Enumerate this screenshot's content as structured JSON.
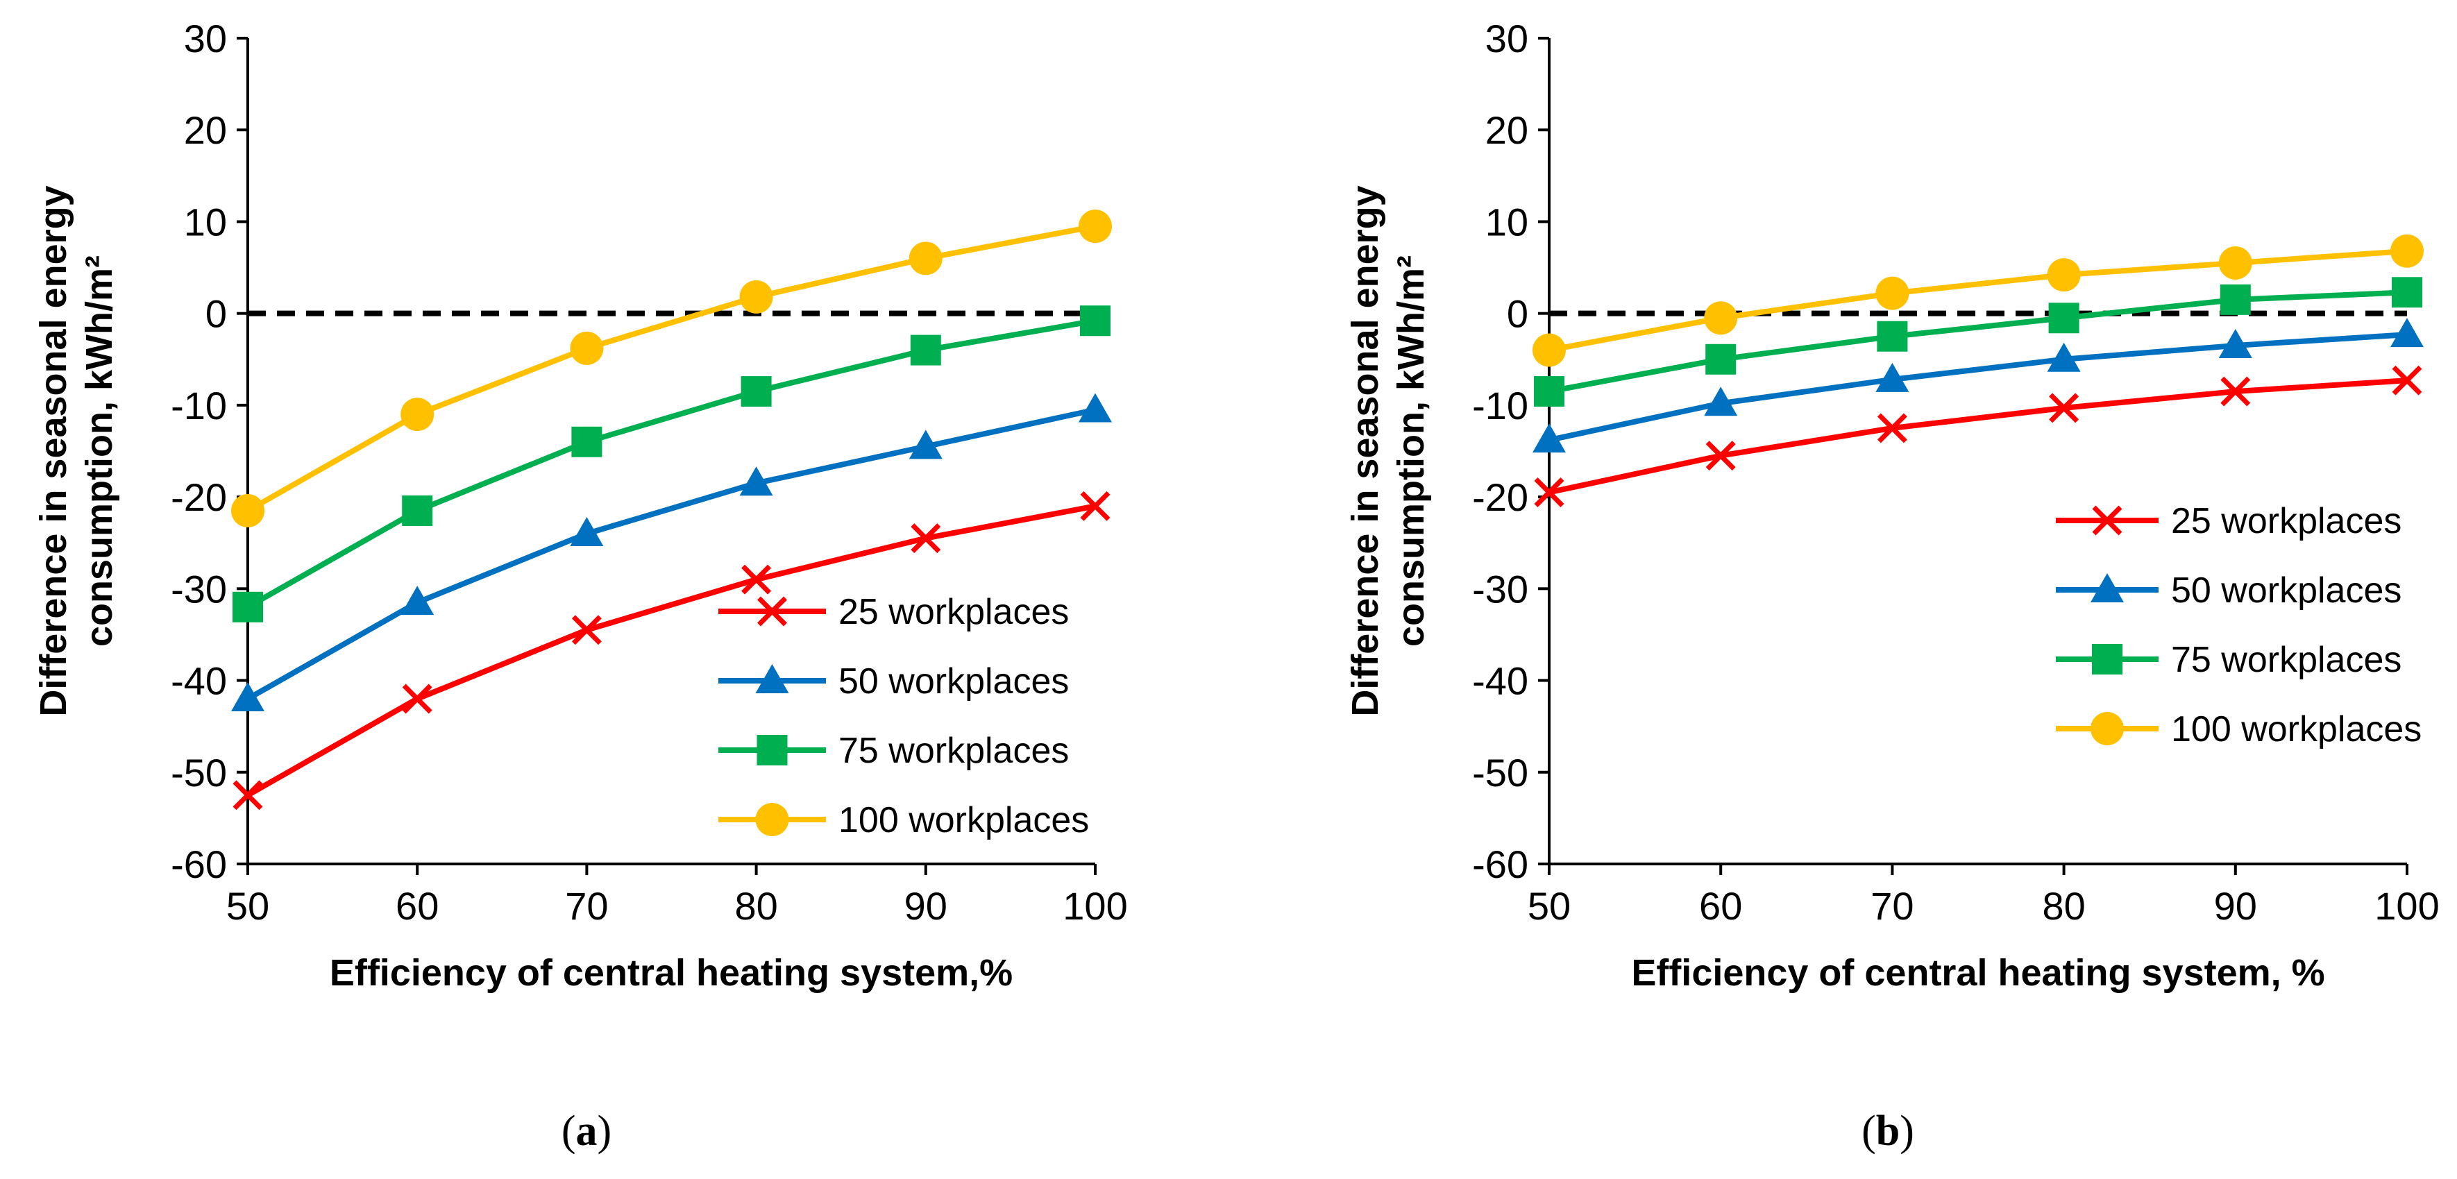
{
  "chart_data": [
    {
      "type": "line",
      "panel_label_open": "(",
      "panel_label": "a",
      "panel_label_close": ")",
      "xlabel": "Efficiency of central heating system,%",
      "ylabel_line1": "Difference in seasonal energy",
      "ylabel_line2": "consumption, kWh/m²",
      "xlim": [
        50,
        100
      ],
      "ylim": [
        -60,
        30
      ],
      "xticks": [
        50,
        60,
        70,
        80,
        90,
        100
      ],
      "yticks": [
        30,
        20,
        10,
        0,
        -10,
        -20,
        -30,
        -40,
        -50,
        -60
      ],
      "legend_position": "bottom-right",
      "x": [
        50,
        60,
        70,
        80,
        90,
        100
      ],
      "series": [
        {
          "name": "25 workplaces",
          "color": "#ff0000",
          "marker": "x",
          "values": [
            -52.5,
            -42,
            -34.5,
            -29,
            -24.5,
            -21
          ]
        },
        {
          "name": "50 workplaces",
          "color": "#0070c0",
          "marker": "triangle",
          "values": [
            -42,
            -31.5,
            -24,
            -18.5,
            -14.5,
            -10.5
          ]
        },
        {
          "name": "75 workplaces",
          "color": "#00b050",
          "marker": "square",
          "values": [
            -32,
            -21.5,
            -14,
            -8.5,
            -4,
            -0.8
          ]
        },
        {
          "name": "100 workplaces",
          "color": "#ffc000",
          "marker": "circle",
          "values": [
            -21.5,
            -11,
            -3.8,
            1.8,
            6,
            9.5
          ]
        }
      ],
      "reference_line": {
        "y": 0,
        "style": "dashed",
        "color": "#000000"
      }
    },
    {
      "type": "line",
      "panel_label_open": "(",
      "panel_label": "b",
      "panel_label_close": ")",
      "xlabel": "Efficiency of central heating system, %",
      "ylabel_line1": "Difference in seasonal energy",
      "ylabel_line2": "consumption, kWh/m²",
      "xlim": [
        50,
        100
      ],
      "ylim": [
        -60,
        30
      ],
      "xticks": [
        50,
        60,
        70,
        80,
        90,
        100
      ],
      "yticks": [
        30,
        20,
        10,
        0,
        -10,
        -20,
        -30,
        -40,
        -50,
        -60
      ],
      "legend_position": "right",
      "x": [
        50,
        60,
        70,
        80,
        90,
        100
      ],
      "series": [
        {
          "name": "25 workplaces",
          "color": "#ff0000",
          "marker": "x",
          "values": [
            -19.5,
            -15.5,
            -12.5,
            -10.3,
            -8.5,
            -7.3
          ]
        },
        {
          "name": "50 workplaces",
          "color": "#0070c0",
          "marker": "triangle",
          "values": [
            -13.8,
            -9.8,
            -7.2,
            -5,
            -3.5,
            -2.3
          ]
        },
        {
          "name": "75 workplaces",
          "color": "#00b050",
          "marker": "square",
          "values": [
            -8.5,
            -5,
            -2.5,
            -0.5,
            1.5,
            2.3
          ]
        },
        {
          "name": "100 workplaces",
          "color": "#ffc000",
          "marker": "circle",
          "values": [
            -4,
            -0.5,
            2.2,
            4.2,
            5.5,
            6.8
          ]
        }
      ],
      "reference_line": {
        "y": 0,
        "style": "dashed",
        "color": "#000000"
      }
    }
  ]
}
